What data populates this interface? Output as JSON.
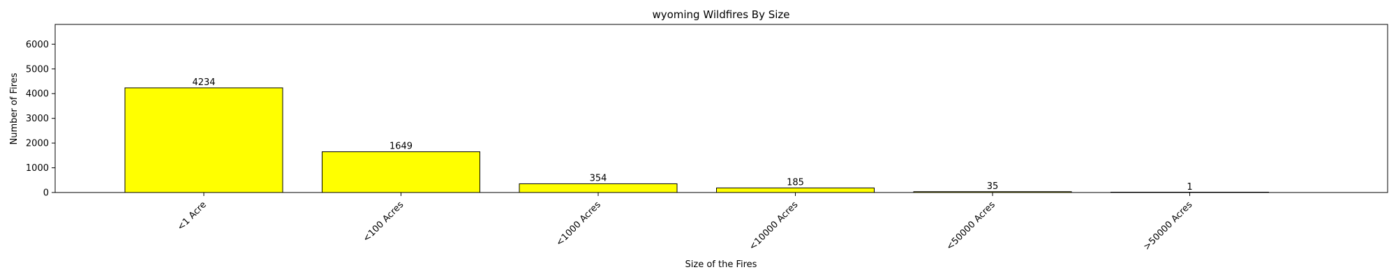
{
  "chart_data": {
    "type": "bar",
    "title": "wyoming Wildfires By Size",
    "xlabel": "Size of the Fires",
    "ylabel": "Number of Fires",
    "categories": [
      "<1 Acre",
      "<100 Acres",
      "<1000 Acres",
      "<10000 Acres",
      "<50000 Acres",
      ">50000 Acres"
    ],
    "values": [
      4234,
      1649,
      354,
      185,
      35,
      1
    ],
    "ylim": [
      0,
      6800
    ],
    "yticks": [
      0,
      1000,
      2000,
      3000,
      4000,
      5000,
      6000
    ],
    "bar_color": "#ffff00",
    "bar_edge_color": "#000000",
    "grid": false,
    "legend": false,
    "xtick_rotation": 45
  }
}
